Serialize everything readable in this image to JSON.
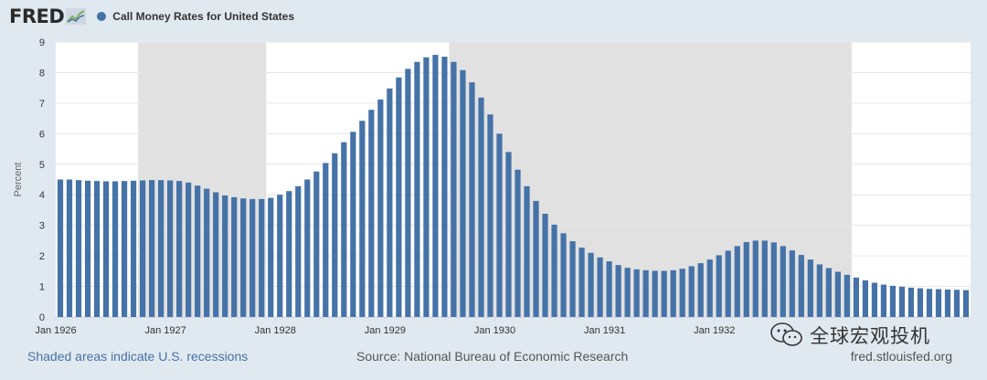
{
  "brand": {
    "logo_text": "FRED",
    "logo_icon": "fred-chart-icon"
  },
  "watermark": {
    "icon": "wechat-icon",
    "text": "全球宏观投机"
  },
  "footer": {
    "recession_note": "Shaded areas indicate U.S. recessions",
    "source": "Source: National Bureau of Economic Research",
    "site": "fred.stlouisfed.org"
  },
  "colors": {
    "series": "#4572a7",
    "recession": "#e1e1e1",
    "background": "#e1e9f0",
    "plot_background": "#ffffff"
  },
  "chart_data": {
    "type": "bar",
    "title": "Call Money Rates for United States",
    "ylabel": "Percent",
    "xlabel": "",
    "ylim": [
      0,
      9
    ],
    "yticks": [
      0,
      1,
      2,
      3,
      4,
      5,
      6,
      7,
      8,
      9
    ],
    "grid": true,
    "legend": "top-left",
    "x_start_month": "1926-01",
    "frequency": "monthly",
    "x_tick_labels": [
      {
        "label": "Jan 1926",
        "index": 0
      },
      {
        "label": "Jan 1927",
        "index": 12
      },
      {
        "label": "Jan 1928",
        "index": 24
      },
      {
        "label": "Jan 1929",
        "index": 36
      },
      {
        "label": "Jan 1930",
        "index": 48
      },
      {
        "label": "Jan 1931",
        "index": 60
      },
      {
        "label": "Jan 1932",
        "index": 72
      }
    ],
    "recessions": [
      {
        "start": "1926-10",
        "end": "1927-11"
      },
      {
        "start": "1929-08",
        "end": "1933-03"
      }
    ],
    "series": [
      {
        "name": "Call Money Rates for United States",
        "values": [
          4.5,
          4.5,
          4.48,
          4.46,
          4.45,
          4.44,
          4.44,
          4.45,
          4.46,
          4.47,
          4.48,
          4.48,
          4.47,
          4.45,
          4.4,
          4.3,
          4.2,
          4.08,
          3.98,
          3.92,
          3.88,
          3.86,
          3.86,
          3.9,
          4.0,
          4.12,
          4.28,
          4.5,
          4.76,
          5.04,
          5.36,
          5.72,
          6.06,
          6.42,
          6.78,
          7.12,
          7.48,
          7.84,
          8.12,
          8.35,
          8.5,
          8.58,
          8.52,
          8.35,
          8.08,
          7.68,
          7.18,
          6.63,
          6.0,
          5.4,
          4.82,
          4.28,
          3.8,
          3.38,
          3.02,
          2.74,
          2.48,
          2.27,
          2.1,
          1.95,
          1.82,
          1.7,
          1.61,
          1.56,
          1.53,
          1.51,
          1.51,
          1.53,
          1.58,
          1.66,
          1.76,
          1.88,
          2.02,
          2.17,
          2.32,
          2.45,
          2.5,
          2.5,
          2.44,
          2.32,
          2.18,
          2.03,
          1.88,
          1.72,
          1.6,
          1.48,
          1.38,
          1.29,
          1.2,
          1.12,
          1.06,
          1.02,
          0.99,
          0.96,
          0.94,
          0.92,
          0.91,
          0.9,
          0.89,
          0.88
        ]
      }
    ]
  }
}
